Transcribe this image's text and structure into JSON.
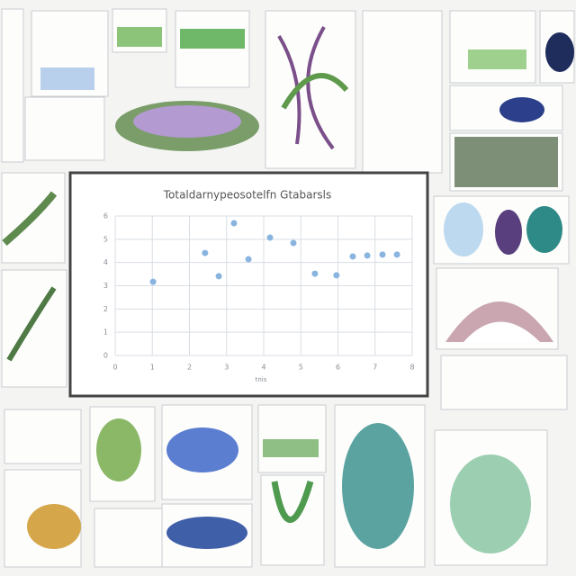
{
  "chart_data": {
    "type": "scatter",
    "title": "Totaldarnypeosotelfn Gtabarsls",
    "x_label": "tnis",
    "x": [
      1.02,
      2.42,
      2.79,
      3.2,
      3.59,
      4.17,
      4.8,
      5.38,
      5.96,
      6.4,
      6.79,
      7.2,
      7.59
    ],
    "values": [
      3.17,
      4.41,
      3.41,
      5.69,
      4.14,
      5.07,
      4.84,
      3.52,
      3.45,
      4.26,
      4.3,
      4.34,
      4.34
    ],
    "color": "#8ab4e0",
    "xlim": [
      0,
      8
    ],
    "xticks": [
      0,
      1,
      2,
      3,
      4,
      5,
      6,
      7,
      8
    ],
    "ylim": [
      0,
      6
    ],
    "yticks": [
      0,
      1,
      2,
      3,
      4,
      5,
      6
    ],
    "grid": true
  }
}
